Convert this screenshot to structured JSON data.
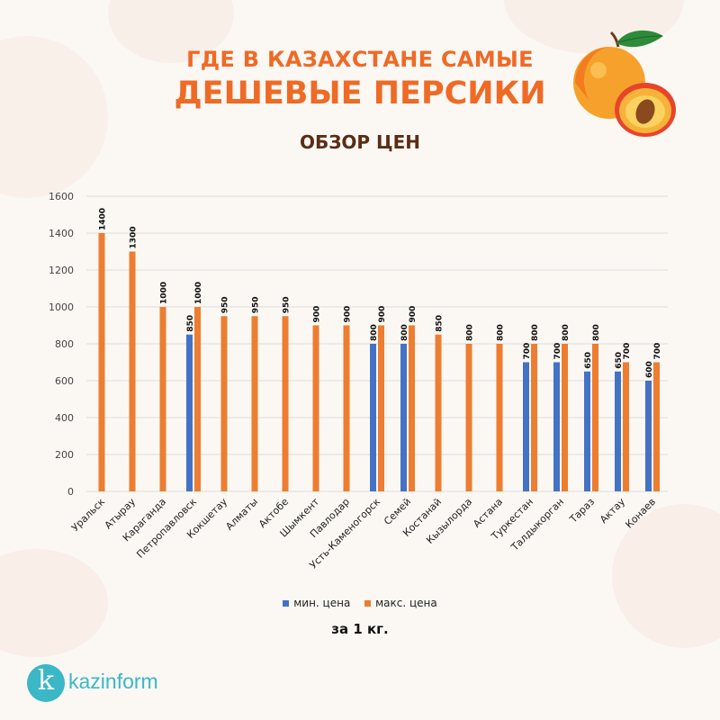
{
  "header": {
    "title_line1": "ГДЕ В КАЗАХСТАНЕ САМЫЕ",
    "title_line2": "ДЕШЕВЫЕ ПЕРСИКИ",
    "subtitle": "ОБЗОР ЦЕН"
  },
  "unit_note": "за 1 кг.",
  "logo": {
    "letter": "k",
    "text": "kazinform"
  },
  "colors": {
    "min": "#4472c4",
    "max": "#ed7d31",
    "title": "#ef6a25",
    "subtitle": "#5a2d14"
  },
  "chart_data": {
    "type": "bar",
    "categories": [
      "Уральск",
      "Атырау",
      "Караганда",
      "Петропавловск",
      "Кокшетау",
      "Алматы",
      "Актобе",
      "Шымкент",
      "Павлодар",
      "Усть-Каменогорск",
      "Семей",
      "Костанай",
      "Кызылорда",
      "Астана",
      "Туркестан",
      "Талдыкорган",
      "Тараз",
      "Актау",
      "Конаев"
    ],
    "series": [
      {
        "name": "мин. цена",
        "values": [
          null,
          null,
          null,
          850,
          null,
          null,
          null,
          null,
          null,
          800,
          800,
          null,
          null,
          null,
          700,
          700,
          650,
          650,
          600
        ]
      },
      {
        "name": "макс. цена",
        "values": [
          1400,
          1300,
          1000,
          1000,
          950,
          950,
          950,
          900,
          900,
          900,
          900,
          850,
          800,
          800,
          800,
          800,
          800,
          700,
          700
        ]
      }
    ],
    "ylim": [
      0,
      1600
    ],
    "yticks": [
      0,
      200,
      400,
      600,
      800,
      1000,
      1200,
      1400,
      1600
    ],
    "grid": true,
    "legend_position": "bottom"
  }
}
